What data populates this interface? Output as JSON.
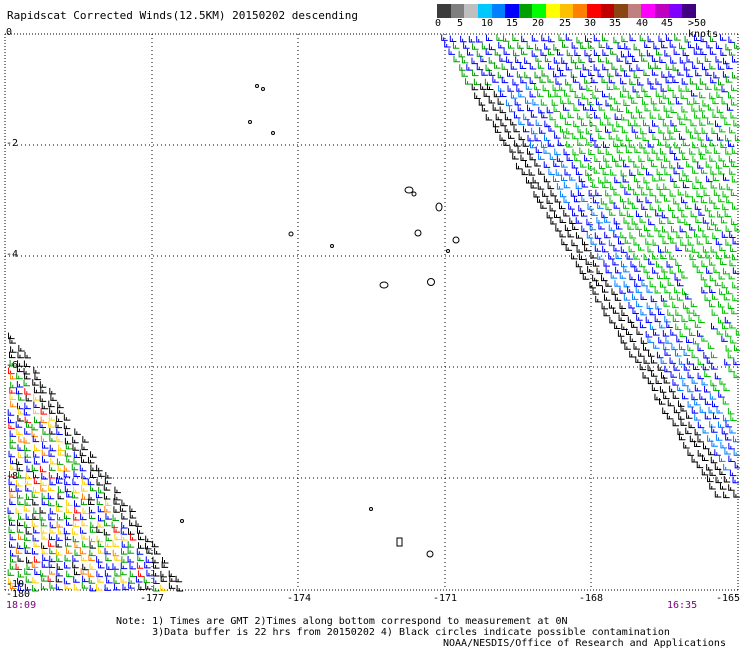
{
  "title": "Rapidscat Corrected Winds(12.5KM) 20150202 descending",
  "legend": {
    "colors": [
      "#3c3c3c",
      "#7f7f7f",
      "#bfbfbf",
      "#00c8ff",
      "#0080ff",
      "#0000ff",
      "#00a000",
      "#00ff00",
      "#ffff00",
      "#ffc000",
      "#ff8000",
      "#ff0000",
      "#c00000",
      "#8b4513",
      "#c08080",
      "#ff00ff",
      "#c000c0",
      "#8000ff",
      "#400080"
    ],
    "labels": [
      "0",
      "5",
      "10",
      "15",
      "20",
      "25",
      "30",
      "35",
      "40",
      "45",
      ">50 knots"
    ]
  },
  "axes": {
    "x_ticks": [
      "-180",
      "-177",
      "-174",
      "-171",
      "-168",
      "-165"
    ],
    "y_ticks": [
      "0",
      "-2",
      "-4",
      "-6",
      "-8",
      "-10"
    ]
  },
  "times": {
    "left": "18:09",
    "right": "16:35"
  },
  "notes": [
    "Note: 1) Times are GMT 2)Times along bottom correspond to measurement at 0N",
    "      3)Data buffer is 22 hrs from 20150202 4) Black circles indicate possible contamination"
  ],
  "credit": "NOAA/NESDIS/Office of Research and Applications"
}
